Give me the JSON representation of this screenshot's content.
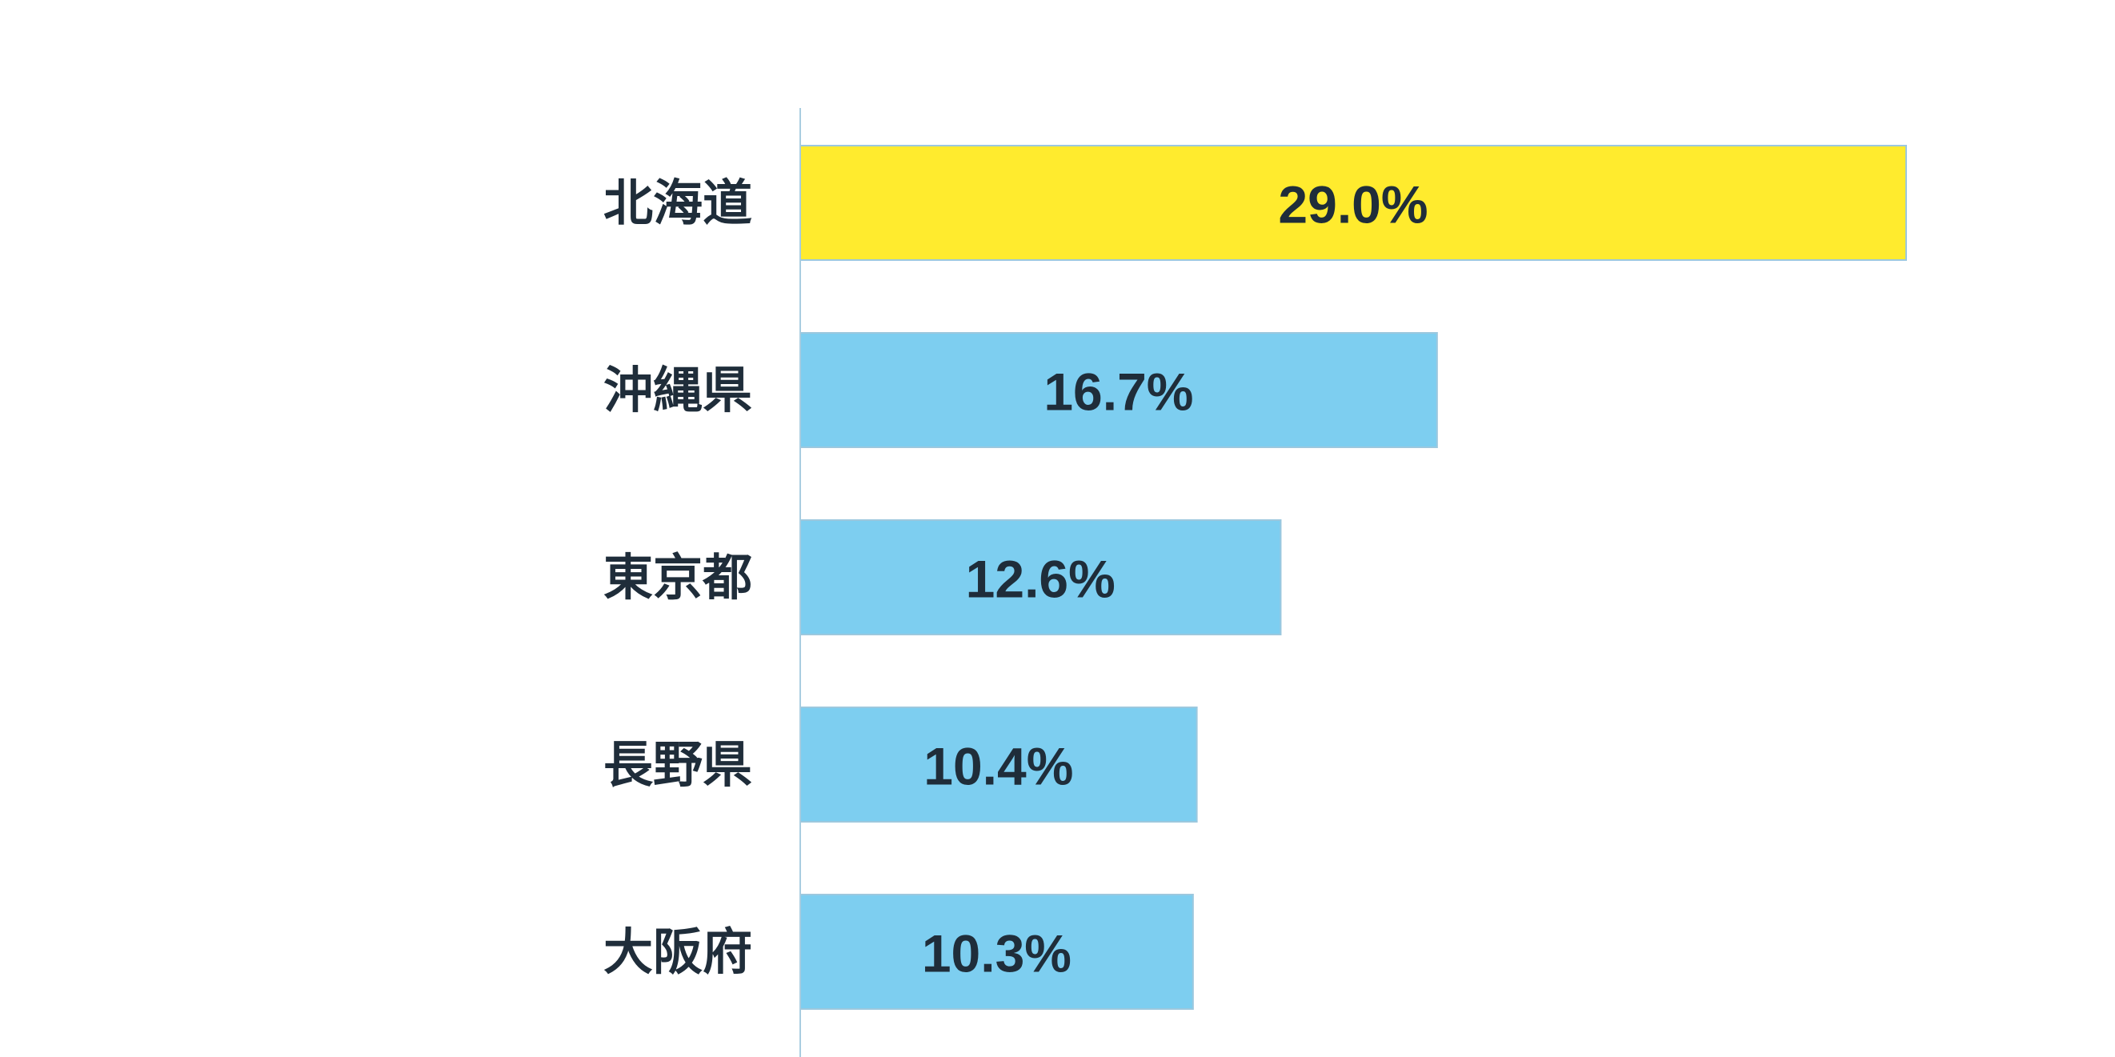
{
  "chart_data": {
    "type": "bar",
    "orientation": "horizontal",
    "categories": [
      "北海道",
      "沖縄県",
      "東京都",
      "長野県",
      "大阪府"
    ],
    "values": [
      29.0,
      16.7,
      12.6,
      10.4,
      10.3
    ],
    "value_labels": [
      "29.0%",
      "16.7%",
      "12.6%",
      "10.4%",
      "10.3%"
    ],
    "unit": "%",
    "title": "",
    "xlabel": "",
    "ylabel": "",
    "xlim": [
      0,
      34.5
    ],
    "grid": false,
    "legend": "none",
    "colors": {
      "highlight": "#ffeb2e",
      "bar": "#7dcef0",
      "bar_border": "#9cc8de",
      "axis": "#a9cde0",
      "text": "#1f2d3a"
    },
    "highlight_index": 0
  }
}
